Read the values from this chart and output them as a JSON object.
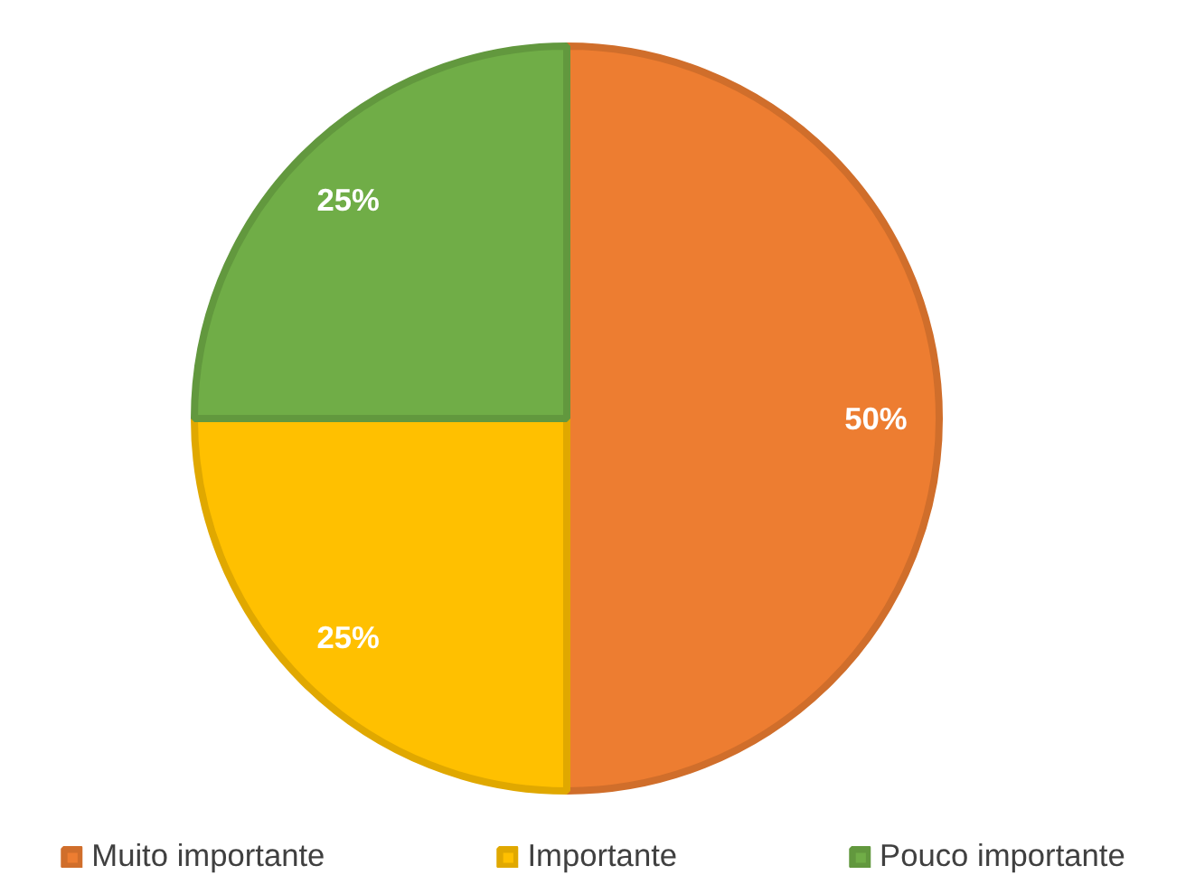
{
  "chart_data": {
    "type": "pie",
    "categories": [
      "Muito importante",
      "Importante",
      "Pouco importante"
    ],
    "values": [
      50,
      25,
      25
    ],
    "colors": [
      "#ed7d31",
      "#ffc000",
      "#70ad47"
    ],
    "value_labels": [
      "50%",
      "25%",
      "25%"
    ],
    "legend": "bottom"
  }
}
